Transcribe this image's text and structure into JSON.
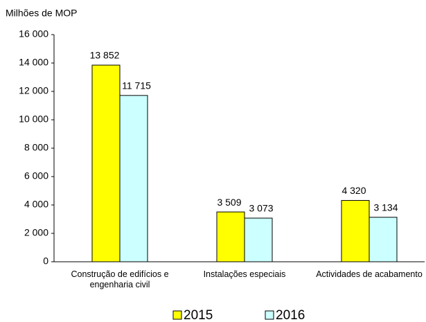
{
  "chart_data": {
    "type": "bar",
    "y_label": "Milhões de MOP",
    "categories": [
      "Construção de edifícios e engenharia civil",
      "Instalações especiais",
      "Actividades de acabamento"
    ],
    "series": [
      {
        "name": "2015",
        "color": "#ffff00",
        "values": [
          13852,
          3509,
          4320
        ],
        "value_labels": [
          "13 852",
          "3 509",
          "4 320"
        ]
      },
      {
        "name": "2016",
        "color": "#ccffff",
        "values": [
          11715,
          3073,
          3134
        ],
        "value_labels": [
          "11 715",
          "3 073",
          "3 134"
        ]
      }
    ],
    "ylim": [
      0,
      16000
    ],
    "yticks": [
      0,
      {
        "value": 2000,
        "label": "2 000"
      },
      {
        "value": 4000,
        "label": "4 000"
      },
      {
        "value": 6000,
        "label": "6 000"
      },
      {
        "value": 8000,
        "label": "8 000"
      },
      {
        "value": 10000,
        "label": "10 000"
      },
      {
        "value": 12000,
        "label": "12 000"
      },
      {
        "value": 14000,
        "label": "14 000"
      },
      {
        "value": 16000,
        "label": "16 000"
      }
    ],
    "grid": false,
    "legend": "bottom"
  }
}
